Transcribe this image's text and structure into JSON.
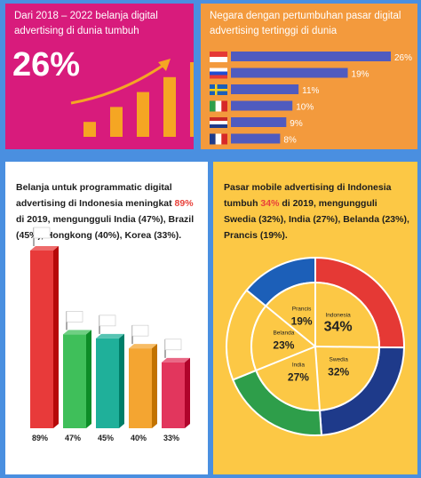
{
  "panel1": {
    "title": "Dari 2018 – 2022 belanja digital advertising di dunia tumbuh",
    "big_value": "26%"
  },
  "panel2": {
    "title": "Negara dengan pertumbuhan pasar digital advertising tertinggi di dunia",
    "bar_color": "#4f5bbf"
  },
  "panel3": {
    "text_before": "Belanja untuk programmatic digital advertising di Indonesia meningkat ",
    "highlight": "89%",
    "text_after": " di 2019, mengungguli India (47%), Brazil (45%), Hongkong (40%), Korea (33%)."
  },
  "panel4": {
    "text_before": "Pasar mobile advertising di Indonesia tumbuh ",
    "highlight": "34%",
    "text_after": " di 2019, mengungguli Swedia (32%), India (27%), Belanda (23%), Prancis (19%)."
  },
  "chart_data": [
    {
      "type": "bar",
      "orientation": "vertical",
      "title": "Dari 2018 – 2022 belanja digital advertising di dunia tumbuh",
      "values": [
        1,
        2,
        3,
        4,
        5
      ],
      "note": "decorative growth bars"
    },
    {
      "type": "bar",
      "orientation": "horizontal",
      "title": "Negara dengan pertumbuhan pasar digital advertising tertinggi di dunia",
      "categories": [
        "Indonesia",
        "Rusia",
        "Swedia",
        "Italia",
        "Belanda",
        "Prancis"
      ],
      "values": [
        26,
        19,
        11,
        10,
        9,
        8
      ],
      "labels": [
        "26%",
        "19%",
        "11%",
        "10%",
        "9%",
        "8%"
      ]
    },
    {
      "type": "bar",
      "orientation": "vertical",
      "categories": [
        "Indonesia",
        "India",
        "Brazil",
        "Hongkong",
        "Korea"
      ],
      "values": [
        89,
        47,
        45,
        40,
        33
      ],
      "labels": [
        "89%",
        "47%",
        "45%",
        "40%",
        "33%"
      ],
      "colors": [
        "#e83a3a",
        "#3fbf5a",
        "#1fb09a",
        "#f4a531",
        "#e2365d"
      ]
    },
    {
      "type": "pie",
      "categories": [
        "Indonesia",
        "Swedia",
        "India",
        "Belanda",
        "Prancis"
      ],
      "values": [
        34,
        32,
        27,
        23,
        19
      ],
      "labels": [
        "34%",
        "32%",
        "27%",
        "23%",
        "19%"
      ],
      "colors": [
        "#fcc845",
        "#fcc845",
        "#fcc845",
        "#fcc845",
        "#fcc845"
      ]
    }
  ]
}
